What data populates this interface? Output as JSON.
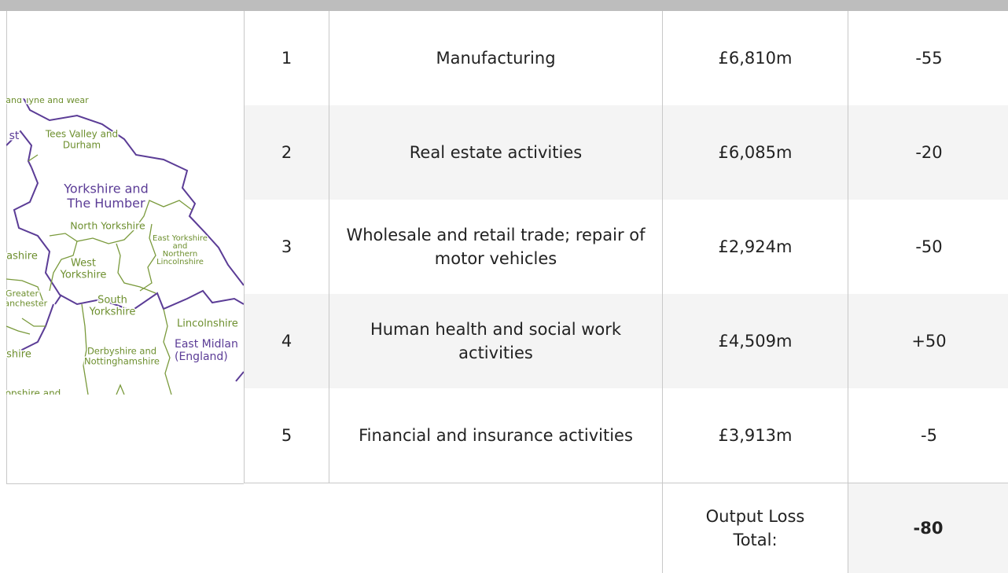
{
  "table": {
    "rows": [
      [
        "1",
        "Manufacturing",
        "£6,810m",
        "-55"
      ],
      [
        "2",
        "Real estate activities",
        "£6,085m",
        "-20"
      ],
      [
        "3",
        "Wholesale and retail trade; repair of motor vehicles",
        "£2,924m",
        "-50"
      ],
      [
        "4",
        "Human health and social work activities",
        "£4,509m",
        "+50"
      ],
      [
        "5",
        "Financial and insurance activities",
        "£3,913m",
        "-5"
      ]
    ],
    "total_label": "Output Loss Total:",
    "total": "-80"
  },
  "map": {
    "labels": [
      {
        "lines": [
          "and Tyne and Wear"
        ],
        "kind": "green"
      },
      {
        "lines": [
          "st"
        ],
        "kind": "purple"
      },
      {
        "lines": [
          "Tees Valley and",
          "Durham"
        ],
        "kind": "green"
      },
      {
        "lines": [
          "Yorkshire and",
          "The Humber"
        ],
        "kind": "purple"
      },
      {
        "lines": [
          "North Yorkshire"
        ],
        "kind": "green"
      },
      {
        "lines": [
          "East Yorkshire",
          "and",
          "Northern",
          "Lincolnshire"
        ],
        "kind": "green"
      },
      {
        "lines": [
          "ashire"
        ],
        "kind": "green"
      },
      {
        "lines": [
          "West",
          "Yorkshire"
        ],
        "kind": "green"
      },
      {
        "lines": [
          "Greater",
          "Manchester"
        ],
        "kind": "green"
      },
      {
        "lines": [
          "South",
          "Yorkshire"
        ],
        "kind": "green"
      },
      {
        "lines": [
          "Lincolnshire"
        ],
        "kind": "green"
      },
      {
        "lines": [
          "East Midlan",
          "(England)"
        ],
        "kind": "purple"
      },
      {
        "lines": [
          "shire"
        ],
        "kind": "green"
      },
      {
        "lines": [
          "Derbyshire and",
          "Nottinghamshire"
        ],
        "kind": "green"
      },
      {
        "lines": [
          "opshire and"
        ],
        "kind": "green"
      }
    ]
  }
}
